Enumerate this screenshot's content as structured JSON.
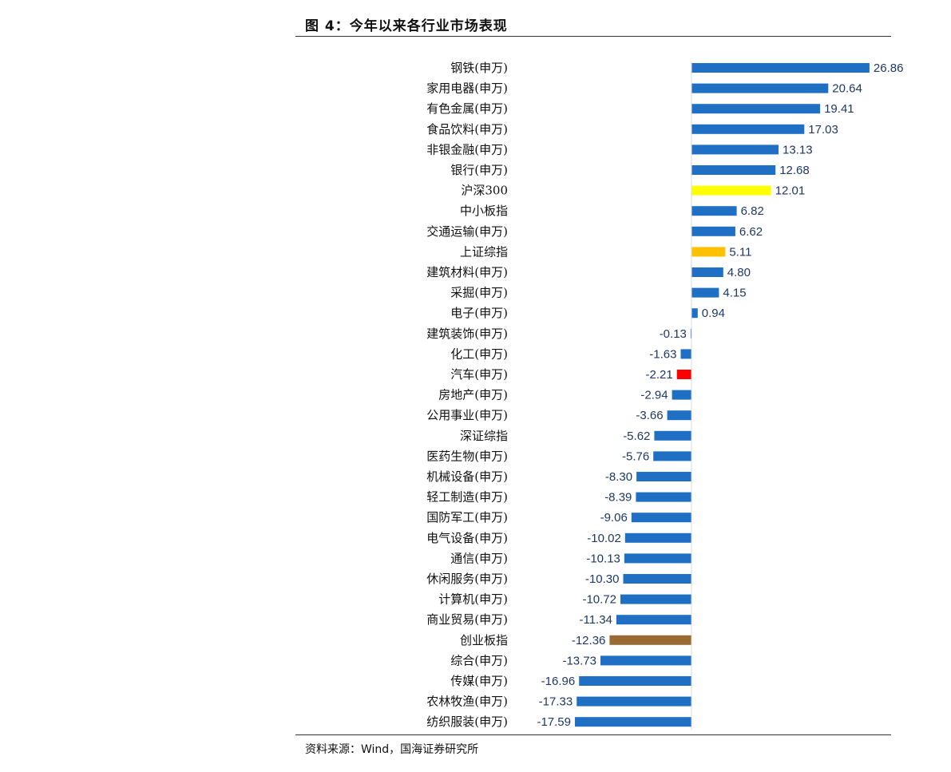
{
  "figure": {
    "title": "图 4：今年以来各行业市场表现",
    "source": "资料来源：Wind，国海证券研究所"
  },
  "chart_data": {
    "type": "bar",
    "orientation": "horizontal",
    "title": "",
    "xlabel": "",
    "ylabel": "",
    "xlim": [
      -17.59,
      26.86
    ],
    "grid": false,
    "legend": "none",
    "colors": {
      "default": "#1f6fc5",
      "沪深300": "#ffff00",
      "上证综指": "#ffc000",
      "汽车(申万)": "#ff0000",
      "创业板指": "#9a6a35"
    },
    "categories": [
      "钢铁(申万)",
      "家用电器(申万)",
      "有色金属(申万)",
      "食品饮料(申万)",
      "非银金融(申万)",
      "银行(申万)",
      "沪深300",
      "中小板指",
      "交通运输(申万)",
      "上证综指",
      "建筑材料(申万)",
      "采掘(申万)",
      "电子(申万)",
      "建筑装饰(申万)",
      "化工(申万)",
      "汽车(申万)",
      "房地产(申万)",
      "公用事业(申万)",
      "深证综指",
      "医药生物(申万)",
      "机械设备(申万)",
      "轻工制造(申万)",
      "国防军工(申万)",
      "电气设备(申万)",
      "通信(申万)",
      "休闲服务(申万)",
      "计算机(申万)",
      "商业贸易(申万)",
      "创业板指",
      "综合(申万)",
      "传媒(申万)",
      "农林牧渔(申万)",
      "纺织服装(申万)"
    ],
    "values": [
      26.86,
      20.64,
      19.41,
      17.03,
      13.13,
      12.68,
      12.01,
      6.82,
      6.62,
      5.11,
      4.8,
      4.15,
      0.94,
      -0.13,
      -1.63,
      -2.21,
      -2.94,
      -3.66,
      -5.62,
      -5.76,
      -8.3,
      -8.39,
      -9.06,
      -10.02,
      -10.13,
      -10.3,
      -10.72,
      -11.34,
      -12.36,
      -13.73,
      -16.96,
      -17.33,
      -17.59
    ],
    "value_labels": [
      "26.86",
      "20.64",
      "19.41",
      "17.03",
      "13.13",
      "12.68",
      "12.01",
      "6.82",
      "6.62",
      "5.11",
      "4.80",
      "4.15",
      "0.94",
      "-0.13",
      "-1.63",
      "-2.21",
      "-2.94",
      "-3.66",
      "-5.62",
      "-5.76",
      "-8.30",
      "-8.39",
      "-9.06",
      "-10.02",
      "-10.13",
      "-10.30",
      "-10.72",
      "-11.34",
      "-12.36",
      "-13.73",
      "-16.96",
      "-17.33",
      "-17.59"
    ]
  }
}
